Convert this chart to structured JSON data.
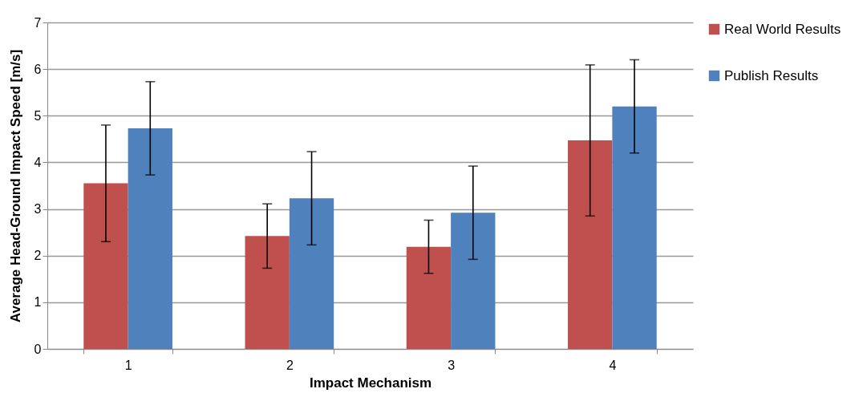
{
  "chart_data": {
    "type": "bar",
    "xlabel": "Impact Mechanism",
    "ylabel": "Average Head-Ground Impact Speed [m/s]",
    "categories": [
      "1",
      "2",
      "3",
      "4"
    ],
    "series": [
      {
        "name": "Real World Results",
        "color": "#c0504d",
        "values": [
          3.55,
          2.42,
          2.19,
          4.47
        ],
        "errors": [
          1.25,
          0.69,
          0.57,
          1.62
        ]
      },
      {
        "name": "Publish Results",
        "color": "#4f81bd",
        "values": [
          4.73,
          3.23,
          2.92,
          5.2
        ],
        "errors": [
          1.0,
          1.0,
          1.0,
          1.0
        ]
      }
    ],
    "ylim": [
      0,
      7
    ],
    "yticks": [
      0,
      1,
      2,
      3,
      4,
      5,
      6,
      7
    ],
    "grid": "y",
    "legend": "right"
  }
}
